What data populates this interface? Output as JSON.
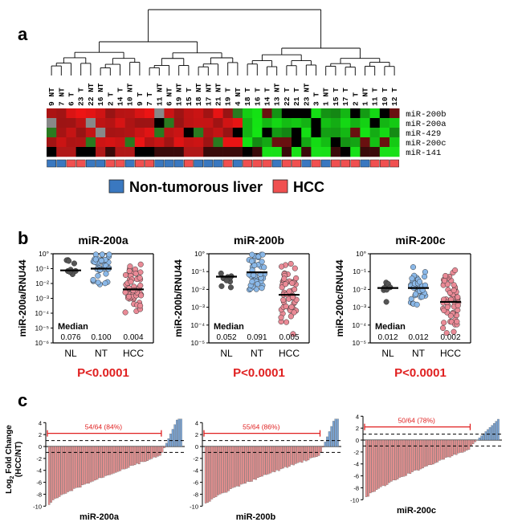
{
  "panels": {
    "a": "a",
    "b": "b",
    "c": "c"
  },
  "heatmap": {
    "samples": [
      "9 NT",
      "7 NT",
      "6 T",
      "23 T",
      "22 NT",
      "16 NT",
      "2 T",
      "14 T",
      "10 NT",
      "9 T",
      "7 T",
      "11 NT",
      "6 NT",
      "19 NT",
      "15 T",
      "18 NT",
      "17 NT",
      "21 NT",
      "19 T",
      "4 NT",
      "18 T",
      "16 T",
      "14 T",
      "13 NT",
      "22 T",
      "21 T",
      "23 NT",
      "3 T",
      "1 NT",
      "15 T",
      "17 T",
      "2 T",
      "1 NT",
      "11 T",
      "10 T",
      "12 T"
    ],
    "tissue": [
      "N",
      "N",
      "H",
      "H",
      "N",
      "N",
      "H",
      "H",
      "N",
      "H",
      "H",
      "N",
      "N",
      "N",
      "H",
      "N",
      "N",
      "N",
      "H",
      "N",
      "H",
      "H",
      "H",
      "N",
      "H",
      "H",
      "N",
      "H",
      "N",
      "H",
      "H",
      "H",
      "N",
      "H",
      "H",
      "H"
    ],
    "genes": [
      "miR-200b",
      "miR-200a",
      "miR-429",
      "miR-200c",
      "miR-141"
    ],
    "colors": {
      "red": "#e02020",
      "green": "#22cc22",
      "black": "#000000",
      "gray": "#888888",
      "nt": "#3a78c0",
      "hcc": "#f05050"
    }
  },
  "legend": {
    "nt_label": "Non-tumorous liver",
    "hcc_label": "HCC"
  },
  "scatter_panels": [
    {
      "title": "miR-200a",
      "ylabel": "miR-200a/RNU44",
      "groups": [
        "NL",
        "NT",
        "HCC"
      ],
      "medians": [
        0.076,
        0.1,
        0.004
      ],
      "median_labels": [
        "0.076",
        "0.100",
        "0.004"
      ],
      "median_label": "Median",
      "pvalue": "P<0.0001",
      "yticks": [
        "10°",
        "10⁻¹",
        "10⁻²",
        "10⁻³",
        "10⁻⁴",
        "10⁻⁵",
        "10⁻⁶"
      ]
    },
    {
      "title": "miR-200b",
      "ylabel": "miR-200b/RNU44",
      "groups": [
        "NL",
        "NT",
        "HCC"
      ],
      "medians": [
        0.052,
        0.091,
        0.005
      ],
      "median_labels": [
        "0.052",
        "0.091",
        "0.005"
      ],
      "median_label": "Median",
      "pvalue": "P<0.0001",
      "yticks": [
        "10°",
        "10⁻¹",
        "10⁻²",
        "10⁻³",
        "10⁻⁴",
        "10⁻⁵"
      ]
    },
    {
      "title": "miR-200c",
      "ylabel": "miR-200c/RNU44",
      "groups": [
        "NL",
        "NT",
        "HCC"
      ],
      "medians": [
        0.012,
        0.012,
        0.002
      ],
      "median_labels": [
        "0.012",
        "0.012",
        "0.002"
      ],
      "median_label": "Median",
      "pvalue": "P<0.0001",
      "yticks": [
        "10°",
        "10⁻¹",
        "10⁻²",
        "10⁻³",
        "10⁻⁴",
        "10⁻⁵"
      ]
    }
  ],
  "chart_data": [
    {
      "type": "scatter",
      "title": "miR-200a",
      "ylabel": "miR-200a/RNU44",
      "yscale": "log",
      "ylim": [
        1e-06,
        1
      ],
      "categories": [
        "NL",
        "NT",
        "HCC"
      ],
      "medians": [
        0.076,
        0.1,
        0.004
      ]
    },
    {
      "type": "scatter",
      "title": "miR-200b",
      "ylabel": "miR-200b/RNU44",
      "yscale": "log",
      "ylim": [
        1e-05,
        1
      ],
      "categories": [
        "NL",
        "NT",
        "HCC"
      ],
      "medians": [
        0.052,
        0.091,
        0.005
      ]
    },
    {
      "type": "scatter",
      "title": "miR-200c",
      "ylabel": "miR-200c/RNU44",
      "yscale": "log",
      "ylim": [
        1e-05,
        1
      ],
      "categories": [
        "NL",
        "NT",
        "HCC"
      ],
      "medians": [
        0.012,
        0.012,
        0.002
      ]
    },
    {
      "type": "bar",
      "title": "miR-200a",
      "ylabel": "Log2 Fold Change (HCC/NT)",
      "ylim": [
        -10,
        4
      ],
      "annotation": "54/64 (84%)",
      "n": 64,
      "down": 54
    },
    {
      "type": "bar",
      "title": "miR-200b",
      "ylabel": "Log2 Fold Change (HCC/NT)",
      "ylim": [
        -10,
        4
      ],
      "annotation": "55/64 (86%)",
      "n": 64,
      "down": 55
    },
    {
      "type": "bar",
      "title": "miR-200c",
      "ylabel": "Log2 Fold Change (HCC/NT)",
      "ylim": [
        -10,
        4
      ],
      "annotation": "50/64 (78%)",
      "n": 64,
      "down": 50
    }
  ],
  "waterfall": {
    "ylabel_main": "Log",
    "ylabel_sub": "2",
    "ylabel_rest": " Fold Change",
    "ylabel_line2": "(HCC/NT)",
    "yticks": [
      "4",
      "2",
      "0",
      "-2",
      "-4",
      "-6",
      "-8",
      "-10"
    ],
    "titles": [
      "miR-200a",
      "miR-200b",
      "miR-200c"
    ],
    "annotations": [
      "54/64 (84%)",
      "55/64 (86%)",
      "50/64 (78%)"
    ]
  }
}
